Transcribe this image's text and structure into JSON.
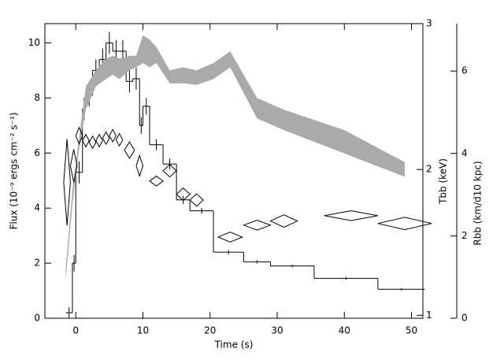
{
  "chart_data": {
    "type": "line",
    "xlabel": "Time (s)",
    "ylabel": "Flux (10⁻⁹ ergs cm⁻² s⁻¹)",
    "y2label": "Tbb (keV)",
    "y3label": "Rbb (km/d10 kpc)",
    "xlim": [
      -4.6,
      51.7
    ],
    "xticks": [
      0,
      10,
      20,
      30,
      40,
      50
    ],
    "ylim": [
      0,
      10.7
    ],
    "yticks": [
      0,
      2,
      4,
      6,
      8,
      10
    ],
    "y2lim": [
      0.98,
      3
    ],
    "y2ticks": [
      1,
      2,
      3
    ],
    "y3lim": [
      0,
      7.15
    ],
    "y3ticks": [
      0,
      2,
      4,
      6
    ],
    "series": [
      {
        "style": "step",
        "color": "#000000",
        "axis": "y",
        "bins": [
          -1.5,
          -0.5,
          0,
          1,
          1.5,
          2.5,
          3.5,
          4.5,
          5.5,
          6.5,
          7.5,
          8.5,
          9.5,
          10,
          11,
          13,
          15,
          17,
          20.5,
          25,
          29,
          35.5,
          45,
          52
        ],
        "values": [
          0.2,
          2.0,
          5.3,
          7.6,
          8.1,
          9.0,
          9.4,
          10.0,
          9.7,
          9.7,
          8.6,
          8.7,
          7.0,
          7.7,
          6.3,
          5.6,
          4.3,
          3.9,
          2.4,
          2.05,
          1.9,
          1.45,
          1.05
        ],
        "errors": [
          0.2,
          0.3,
          0.4,
          0.4,
          0.4,
          0.4,
          0.4,
          0.4,
          0.4,
          0.4,
          0.4,
          0.4,
          0.3,
          0.3,
          0.2,
          0.2,
          0.15,
          0.1,
          0.08,
          0.06,
          0.05,
          0.05,
          0.04
        ]
      },
      {
        "style": "band",
        "color": "#aaaaaa",
        "axis": "y2",
        "x": [
          -1.5,
          -0.5,
          0.5,
          1.5,
          3,
          4.5,
          5.5,
          6.5,
          8,
          9,
          10,
          11,
          12,
          14,
          16,
          18,
          20.5,
          23,
          27,
          31,
          40,
          49
        ],
        "lower": [
          1.24,
          1.76,
          2.14,
          2.41,
          2.57,
          2.62,
          2.65,
          2.62,
          2.68,
          2.7,
          2.73,
          2.7,
          2.73,
          2.59,
          2.59,
          2.58,
          2.62,
          2.7,
          2.35,
          2.27,
          2.11,
          1.95
        ],
        "upper": [
          1.32,
          1.86,
          2.22,
          2.57,
          2.68,
          2.76,
          2.78,
          2.76,
          2.78,
          2.78,
          2.92,
          2.89,
          2.84,
          2.68,
          2.7,
          2.68,
          2.73,
          2.81,
          2.49,
          2.41,
          2.27,
          2.05
        ]
      },
      {
        "style": "diamond",
        "color": "#000000",
        "axis": "y3",
        "x": [
          -1.3,
          -0.3,
          0.5,
          1.5,
          2.5,
          3.5,
          4.5,
          5.5,
          6.5,
          8,
          9.5,
          12,
          14,
          16,
          18,
          23,
          27,
          31,
          41,
          49
        ],
        "xerr": [
          0.5,
          0.5,
          0.5,
          0.5,
          0.5,
          0.5,
          0.5,
          0.5,
          0.5,
          0.75,
          0.5,
          1,
          1,
          1,
          1,
          1.8,
          2,
          2,
          4,
          4
        ],
        "values": [
          3.3,
          3.7,
          4.43,
          4.31,
          4.27,
          4.31,
          4.37,
          4.43,
          4.33,
          4.08,
          3.7,
          3.33,
          3.58,
          3.01,
          2.87,
          1.97,
          2.26,
          2.36,
          2.49,
          2.3
        ],
        "yerr": [
          1.05,
          0.4,
          0.2,
          0.15,
          0.15,
          0.15,
          0.15,
          0.15,
          0.15,
          0.2,
          0.25,
          0.12,
          0.15,
          0.15,
          0.15,
          0.12,
          0.12,
          0.15,
          0.12,
          0.15
        ]
      }
    ]
  }
}
